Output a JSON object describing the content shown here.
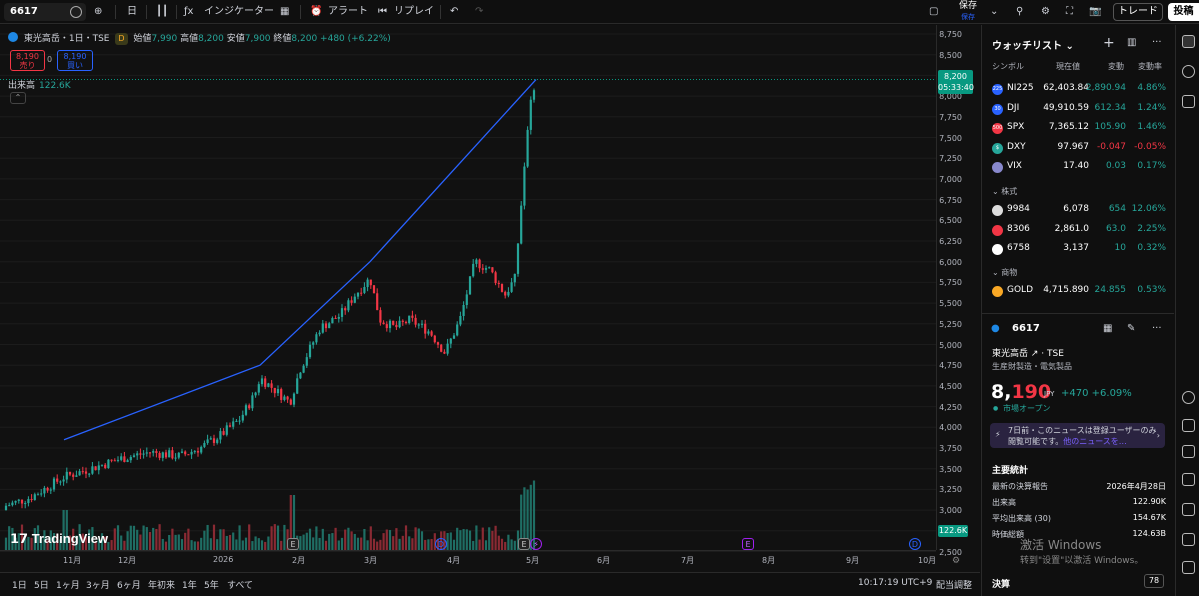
{
  "toolbar": {
    "symbol": "6617",
    "interval": "日",
    "indicators_label": "インジケーター",
    "alert_label": "アラート",
    "replay_label": "リプレイ",
    "save_label": "保存",
    "save_sub": "保存",
    "trade_label": "トレード",
    "post_label": "投稿"
  },
  "legend": {
    "title": "東光高岳・1日・TSE",
    "badge": "D",
    "open_label": "始値",
    "open": "7,990",
    "high_label": "高値",
    "high": "8,200",
    "low_label": "安値",
    "low": "7,900",
    "close_label": "終値",
    "close": "8,200",
    "change": "+480 (+6.22%)",
    "sell_price": "8,190",
    "sell_label": "売り",
    "spread": "0",
    "buy_price": "8,190",
    "buy_label": "買い",
    "volume_label": "出来高",
    "volume_value": "122.6K"
  },
  "y_axis": [
    "8,750",
    "8,500",
    "8,250",
    "8,000",
    "7,750",
    "7,500",
    "7,250",
    "7,000",
    "6,750",
    "6,500",
    "6,250",
    "6,000",
    "5,750",
    "5,500",
    "5,250",
    "5,000",
    "4,750",
    "4,500",
    "4,250",
    "4,000",
    "3,750",
    "3,500",
    "3,250",
    "3,000",
    "2,750",
    "2,500"
  ],
  "last_price": {
    "price": "8,200",
    "countdown": "05:33:40"
  },
  "last_volume": "122.6K",
  "x_axis": [
    "11月",
    "12月",
    "2026",
    "2月",
    "3月",
    "4月",
    "5月",
    "6月",
    "7月",
    "8月",
    "9月",
    "10月"
  ],
  "bottom": {
    "ranges": [
      "1日",
      "5日",
      "1ヶ月",
      "3ヶ月",
      "6ヶ月",
      "年初来",
      "1年",
      "5年",
      "すべて"
    ],
    "clock": "10:17:19 UTC+9",
    "adjust": "配当調整"
  },
  "logo": "TradingView",
  "watchlist": {
    "title": "ウォッチリスト",
    "headers": {
      "symbol": "シンボル",
      "last": "現在値",
      "chg": "変動",
      "pct": "変動率"
    },
    "rows": [
      {
        "icon": "225",
        "sym": "NI225",
        "last": "62,403.84",
        "chg": "2,890.94",
        "pct": "4.86%",
        "dir": "up",
        "color": "#2962ff"
      },
      {
        "icon": "30",
        "sym": "DJI",
        "last": "49,910.59",
        "chg": "612.34",
        "pct": "1.24%",
        "dir": "up",
        "color": "#2962ff"
      },
      {
        "icon": "500",
        "sym": "SPX",
        "last": "7,365.12",
        "chg": "105.90",
        "pct": "1.46%",
        "dir": "up",
        "color": "#f23645"
      },
      {
        "icon": "$",
        "sym": "DXY",
        "last": "97.967",
        "chg": "-0.047",
        "pct": "-0.05%",
        "dir": "dn",
        "color": "#26a69a"
      },
      {
        "icon": "",
        "sym": "VIX",
        "last": "17.40",
        "chg": "0.03",
        "pct": "0.17%",
        "dir": "up",
        "color": "#8888cc"
      }
    ],
    "section_stocks": "株式",
    "stocks": [
      {
        "icon": "",
        "sym": "9984",
        "last": "6,078",
        "chg": "654",
        "pct": "12.06%",
        "dir": "up",
        "color": "#ddd"
      },
      {
        "icon": "",
        "sym": "8306",
        "last": "2,861.0",
        "chg": "63.0",
        "pct": "2.25%",
        "dir": "up",
        "color": "#f23645"
      },
      {
        "icon": "",
        "sym": "6758",
        "last": "3,137",
        "chg": "10",
        "pct": "0.32%",
        "dir": "up",
        "color": "#fff"
      }
    ],
    "section_commod": "商物",
    "commod": [
      {
        "icon": "",
        "sym": "GOLD",
        "last": "4,715.890",
        "chg": "24.855",
        "pct": "0.53%",
        "dir": "up",
        "color": "#f9a825"
      }
    ]
  },
  "detail": {
    "symbol": "6617",
    "name": "東光高岳",
    "exchange": "TSE",
    "sector": "生産財製造・電気製品",
    "price_main": "8,",
    "price_red": "190",
    "currency": "JPY",
    "change": "+470  +6.09%",
    "market_status": "市場オープン",
    "news_text": "7日前・このニュースは登録ユーザーのみ閲覧可能です。",
    "news_link": "他のニュースを…",
    "stats_title": "主要統計",
    "stats": [
      {
        "k": "最新の決算報告",
        "v": "2026年4月28日"
      },
      {
        "k": "出来高",
        "v": "122.90K"
      },
      {
        "k": "平均出来高 (30)",
        "v": "154.67K"
      },
      {
        "k": "時価総額",
        "v": "124.63B"
      }
    ],
    "earnings_label": "決算",
    "earnings_count": "78"
  },
  "windows_watermark": {
    "title": "激活 Windows",
    "sub": "转到\"设置\"以激活 Windows。"
  },
  "colors": {
    "up": "#26a69a",
    "down": "#f23645",
    "trendline": "#2962ff"
  }
}
